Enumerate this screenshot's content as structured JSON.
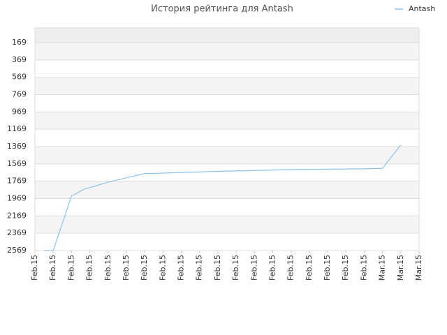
{
  "chart_data": {
    "type": "line",
    "title": "История рейтинга для Antash",
    "series": [
      {
        "name": "Antash",
        "color": "#8ec4f0",
        "x": [
          0.5,
          1,
          2,
          2.7,
          3.2,
          4,
          5,
          6,
          6.6,
          7,
          8,
          9,
          10,
          11,
          12,
          13,
          14,
          15,
          16,
          17,
          18,
          19,
          20
        ],
        "values": [
          2569,
          2569,
          1940,
          1860,
          1830,
          1780,
          1730,
          1680,
          1678,
          1675,
          1668,
          1662,
          1655,
          1650,
          1645,
          1640,
          1635,
          1632,
          1630,
          1628,
          1626,
          1620,
          1350
        ]
      }
    ],
    "xlim": [
      0,
      21
    ],
    "xticks": [
      {
        "value": 0,
        "label": "Feb.15"
      },
      {
        "value": 1,
        "label": "Feb.15"
      },
      {
        "value": 2,
        "label": "Feb.15"
      },
      {
        "value": 3,
        "label": "Feb.15"
      },
      {
        "value": 4,
        "label": "Feb.15"
      },
      {
        "value": 5,
        "label": "Feb.15"
      },
      {
        "value": 6,
        "label": "Feb.15"
      },
      {
        "value": 7,
        "label": "Feb.15"
      },
      {
        "value": 8,
        "label": "Feb.15"
      },
      {
        "value": 9,
        "label": "Feb.15"
      },
      {
        "value": 10,
        "label": "Feb.15"
      },
      {
        "value": 11,
        "label": "Feb.15"
      },
      {
        "value": 12,
        "label": "Feb.15"
      },
      {
        "value": 13,
        "label": "Feb.15"
      },
      {
        "value": 14,
        "label": "Feb.15"
      },
      {
        "value": 15,
        "label": "Feb.15"
      },
      {
        "value": 16,
        "label": "Feb.15"
      },
      {
        "value": 17,
        "label": "Feb.15"
      },
      {
        "value": 18,
        "label": "Feb.15"
      },
      {
        "value": 19,
        "label": "Mar.15"
      },
      {
        "value": 20,
        "label": "Mar.15"
      },
      {
        "value": 21,
        "label": "Mar.15"
      }
    ],
    "ylim": [
      2569,
      0
    ],
    "yticks": [
      169,
      369,
      569,
      769,
      969,
      1169,
      1369,
      1569,
      1769,
      1969,
      2169,
      2369,
      2569
    ],
    "grid": true,
    "legend": "top-right"
  }
}
